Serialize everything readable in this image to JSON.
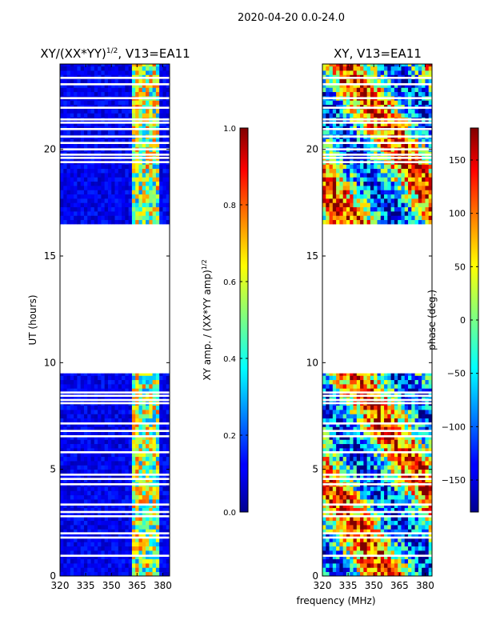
{
  "suptitle": "2020-04-20 0.0-24.0",
  "chart_data": [
    {
      "type": "heatmap",
      "title": "XY/(XX*YY)^1/2, V13=EA11",
      "title_main": "XY/(XX*YY)",
      "title_exp": "1/2",
      "title_tail": ", V13=EA11",
      "xlabel": "",
      "ylabel": "UT (hours)",
      "xlim": [
        320,
        384
      ],
      "ylim": [
        0,
        24
      ],
      "xticks": [
        320,
        335,
        350,
        365,
        380
      ],
      "yticks": [
        0,
        5,
        10,
        15,
        20
      ],
      "data_ranges_hours": [
        [
          0,
          9.5
        ],
        [
          16.5,
          24
        ]
      ],
      "colorbar": {
        "label": "XY amp. / (XX*YY amp)^1/2",
        "label_main": "XY amp. / (XX*YY amp)",
        "label_exp": "1/2",
        "range": [
          0.0,
          1.0
        ],
        "ticks": [
          "0.0",
          "0.2",
          "0.4",
          "0.6",
          "0.8",
          "1.0"
        ],
        "values": [
          0.0,
          0.2,
          0.4,
          0.6,
          0.8,
          1.0
        ]
      }
    },
    {
      "type": "heatmap",
      "title": "XY, V13=EA11",
      "xlabel": "frequency (MHz)",
      "ylabel": "",
      "xlim": [
        320,
        384
      ],
      "ylim": [
        0,
        24
      ],
      "xticks": [
        320,
        335,
        350,
        365,
        380
      ],
      "yticks": [
        0,
        5,
        10,
        15,
        20
      ],
      "data_ranges_hours": [
        [
          0,
          9.5
        ],
        [
          16.5,
          24
        ]
      ],
      "colorbar": {
        "label": "phase (deg.)",
        "range": [
          -180,
          180
        ],
        "ticks": [
          "−150",
          "−100",
          "−50",
          "0",
          "50",
          "100",
          "150"
        ],
        "values": [
          -150,
          -100,
          -50,
          0,
          50,
          100,
          150
        ]
      }
    }
  ],
  "colors": {
    "jet_dark_blue": "#00008f",
    "jet_blue": "#0040ff",
    "jet_cyan": "#00ffff",
    "jet_yellow": "#ffff00",
    "jet_red": "#ff0000",
    "jet_dark_red": "#800000"
  }
}
